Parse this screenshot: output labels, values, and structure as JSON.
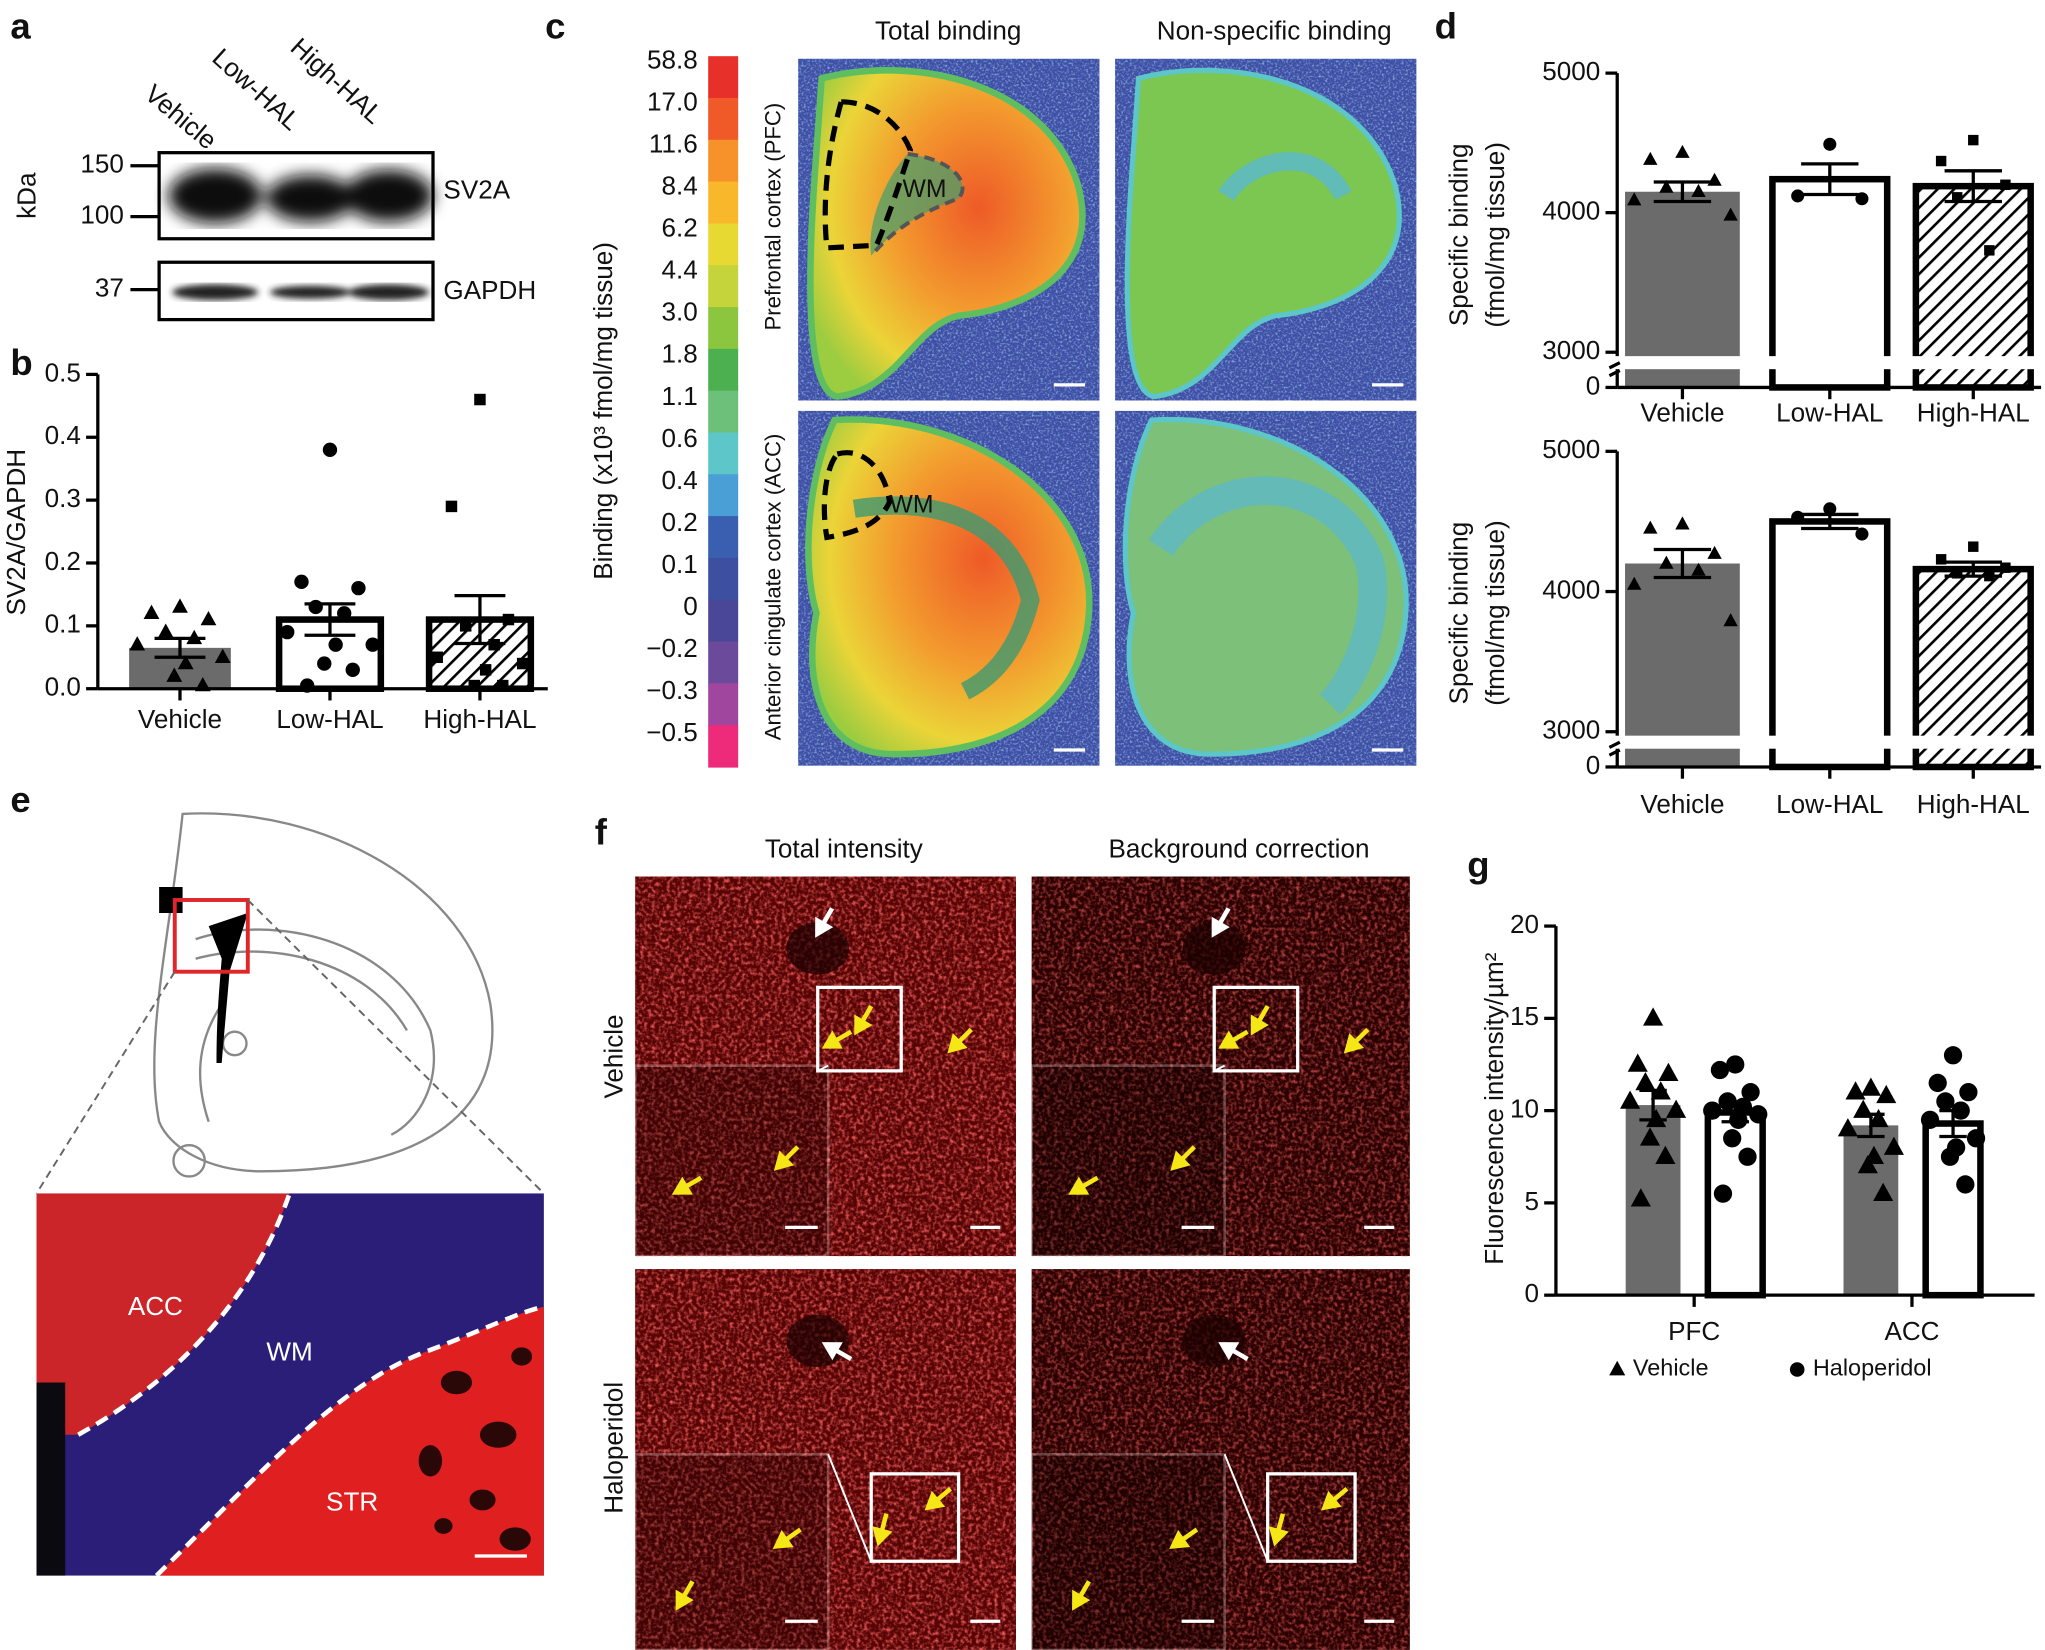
{
  "panel_labels": [
    "a",
    "b",
    "c",
    "d",
    "e",
    "f",
    "g"
  ],
  "blot": {
    "lanes": [
      "Vehicle",
      "Low-HAL",
      "High-HAL"
    ],
    "unit": "kDa",
    "markers": [
      150,
      100,
      37
    ],
    "proteins": [
      "SV2A",
      "GAPDH"
    ]
  },
  "autoradiography": {
    "colorbar_label": "Binding (x10³ fmol/mg tissue)",
    "colorbar_ticks": [
      "58.8",
      "17.0",
      "11.6",
      "8.4",
      "6.2",
      "4.4",
      "3.0",
      "1.8",
      "1.1",
      "0.6",
      "0.4",
      "0.2",
      "0.1",
      "0",
      "−0.2",
      "−0.3",
      "−0.5"
    ],
    "colorbar_colors": [
      "#e8302a",
      "#f05a28",
      "#f7922a",
      "#f9b82b",
      "#e8d832",
      "#c4d43a",
      "#8cc63f",
      "#4caf50",
      "#6cc07a",
      "#5cc6c8",
      "#4a9fd6",
      "#3b5fb0",
      "#3c4fa0",
      "#4a4798",
      "#6b4a9b",
      "#a0469f",
      "#ee2a7b"
    ],
    "columns": [
      "Total binding",
      "Non-specific binding"
    ],
    "rows": [
      "Prefrontal cortex (PFC)",
      "Anterior cingulate cortex (ACC)"
    ],
    "region": "WM"
  },
  "panel_e": {
    "labels": [
      "ACC",
      "WM",
      "STR"
    ]
  },
  "panel_f": {
    "columns": [
      "Total intensity",
      "Background correction"
    ],
    "rows": [
      "Vehicle",
      "Haloperidol"
    ]
  },
  "chart_data": [
    {
      "type": "bar",
      "ylabel": "SV2A/GAPDH",
      "categories": [
        "Vehicle",
        "Low-HAL",
        "High-HAL"
      ],
      "values": [
        0.065,
        0.11,
        0.11
      ],
      "errors": [
        0.015,
        0.025,
        0.038
      ],
      "colors": [
        "#6b6b6b",
        "#ffffff",
        "#ffffff"
      ],
      "edgecolors": [
        "none",
        "#000000",
        "#000000"
      ],
      "hatched": [
        false,
        false,
        true
      ],
      "markers": [
        "triangle",
        "circle",
        "square"
      ],
      "points": [
        [
          0.13,
          0.12,
          0.11,
          0.09,
          0.08,
          0.07,
          0.05,
          0.04,
          0.02,
          0.005
        ],
        [
          0.38,
          0.17,
          0.16,
          0.13,
          0.12,
          0.09,
          0.07,
          0.07,
          0.04,
          0.03,
          0.005
        ],
        [
          0.46,
          0.29,
          0.11,
          0.1,
          0.07,
          0.05,
          0.04,
          0.03,
          0.005,
          0.005
        ]
      ],
      "ylim": [
        0,
        0.5
      ],
      "yticks": [
        {
          "value": 0,
          "label": "0.0"
        },
        0.1,
        0.2,
        0.3,
        0.4,
        0.5
      ]
    },
    {
      "type": "bar",
      "ylabel": [
        "Specific binding",
        "(fmol/mg tissue)"
      ],
      "categories": [
        "Vehicle",
        "Low-HAL",
        "High-HAL"
      ],
      "values": [
        4150,
        4240,
        4190
      ],
      "errors": [
        70,
        110,
        110
      ],
      "colors": [
        "#6b6b6b",
        "#ffffff",
        "#ffffff"
      ],
      "edgecolors": [
        "none",
        "#000000",
        "#000000"
      ],
      "hatched": [
        false,
        false,
        true
      ],
      "markers": [
        "triangle",
        "circle",
        "square"
      ],
      "points": [
        [
          4430,
          4380,
          4230,
          4180,
          4150,
          4090,
          3980
        ],
        [
          4490,
          4120,
          4100
        ],
        [
          4520,
          4370,
          4200,
          4110,
          3730
        ]
      ],
      "ylim": [
        0,
        5000
      ],
      "axis_break": [
        0,
        3000
      ],
      "yticks": [
        0,
        3000,
        4000,
        5000
      ]
    },
    {
      "type": "bar",
      "ylabel": [
        "Specific binding",
        "(fmol/mg tissue)"
      ],
      "categories": [
        "Vehicle",
        "Low-HAL",
        "High-HAL"
      ],
      "values": [
        4200,
        4500,
        4160
      ],
      "errors": [
        100,
        50,
        50
      ],
      "colors": [
        "#6b6b6b",
        "#ffffff",
        "#ffffff"
      ],
      "edgecolors": [
        "none",
        "#000000",
        "#000000"
      ],
      "hatched": [
        false,
        false,
        true
      ],
      "markers": [
        "triangle",
        "circle",
        "square"
      ],
      "points": [
        [
          4480,
          4450,
          4270,
          4200,
          4150,
          4050,
          3790
        ],
        [
          4590,
          4530,
          4410
        ],
        [
          4320,
          4230,
          4170,
          4130,
          4110
        ]
      ],
      "ylim": [
        0,
        5000
      ],
      "axis_break": [
        0,
        3000
      ],
      "yticks": [
        0,
        3000,
        4000,
        5000
      ]
    },
    {
      "type": "bar",
      "ylabel": "Fluorescence intensity/µm²",
      "categories": [
        "PFC",
        "ACC"
      ],
      "legend": "bottom",
      "series": [
        {
          "name": "Vehicle",
          "color": "#6b6b6b",
          "edgecolor": "none",
          "marker": "triangle",
          "values": [
            10.3,
            9.2
          ],
          "errors": [
            0.8,
            0.6
          ],
          "points": [
            [
              15,
              12.5,
              12,
              11.5,
              11,
              10.5,
              10,
              9.5,
              8.5,
              7.5,
              5.2
            ],
            [
              11.2,
              11,
              10.8,
              10,
              9.5,
              9,
              8,
              7.5,
              7,
              5.5
            ]
          ]
        },
        {
          "name": "Haloperidol",
          "color": "#ffffff",
          "edgecolor": "#000000",
          "marker": "circle",
          "values": [
            9.9,
            9.3
          ],
          "errors": [
            0.5,
            0.7
          ],
          "points": [
            [
              12.5,
              12.2,
              11,
              10.5,
              10.2,
              10,
              9.8,
              9.5,
              8.5,
              7.5,
              5.5
            ],
            [
              13,
              11.5,
              11,
              10.5,
              10,
              9.5,
              8.5,
              8,
              7.5,
              6
            ]
          ]
        }
      ],
      "ylim": [
        0,
        20
      ],
      "yticks": [
        0,
        5,
        10,
        15,
        20
      ]
    }
  ]
}
